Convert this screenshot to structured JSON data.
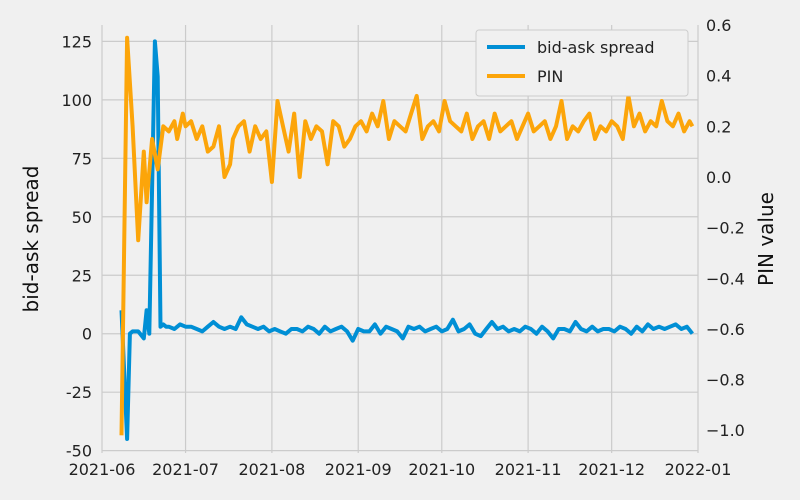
{
  "chart_data": {
    "type": "line",
    "title": "",
    "xlabel": "",
    "ylabel_left": "bid-ask spread",
    "ylabel_right": "PIN value",
    "x_ticks": [
      "2021-06",
      "2021-07",
      "2021-08",
      "2021-09",
      "2021-10",
      "2021-11",
      "2021-12",
      "2022-01"
    ],
    "xlim": [
      "2021-06-01",
      "2022-01-01"
    ],
    "ylim_left": [
      -51,
      132
    ],
    "ylim_right": [
      -1.09,
      0.6
    ],
    "y_ticks_left": [
      -50,
      -25,
      0,
      25,
      50,
      75,
      100,
      125
    ],
    "y_ticks_right": [
      -1.0,
      -0.8,
      -0.6,
      -0.4,
      -0.2,
      0.0,
      0.2,
      0.4,
      0.6
    ],
    "grid": true,
    "legend": {
      "position": "top-right"
    },
    "series": [
      {
        "name": "bid-ask spread",
        "axis": "left",
        "color": "#008fd5",
        "x": [
          "2021-06-08",
          "2021-06-10",
          "2021-06-11",
          "2021-06-12",
          "2021-06-14",
          "2021-06-16",
          "2021-06-17",
          "2021-06-18",
          "2021-06-20",
          "2021-06-21",
          "2021-06-22",
          "2021-06-23",
          "2021-06-24",
          "2021-06-25",
          "2021-06-27",
          "2021-06-29",
          "2021-07-01",
          "2021-07-03",
          "2021-07-05",
          "2021-07-07",
          "2021-07-09",
          "2021-07-11",
          "2021-07-13",
          "2021-07-15",
          "2021-07-17",
          "2021-07-19",
          "2021-07-21",
          "2021-07-23",
          "2021-07-25",
          "2021-07-27",
          "2021-07-29",
          "2021-07-31",
          "2021-08-02",
          "2021-08-04",
          "2021-08-06",
          "2021-08-08",
          "2021-08-10",
          "2021-08-12",
          "2021-08-14",
          "2021-08-16",
          "2021-08-18",
          "2021-08-20",
          "2021-08-22",
          "2021-08-24",
          "2021-08-26",
          "2021-08-28",
          "2021-08-30",
          "2021-09-01",
          "2021-09-03",
          "2021-09-05",
          "2021-09-07",
          "2021-09-09",
          "2021-09-11",
          "2021-09-13",
          "2021-09-15",
          "2021-09-17",
          "2021-09-19",
          "2021-09-21",
          "2021-09-23",
          "2021-09-25",
          "2021-09-27",
          "2021-09-29",
          "2021-10-01",
          "2021-10-03",
          "2021-10-05",
          "2021-10-07",
          "2021-10-09",
          "2021-10-11",
          "2021-10-13",
          "2021-10-15",
          "2021-10-17",
          "2021-10-19",
          "2021-10-21",
          "2021-10-23",
          "2021-10-25",
          "2021-10-27",
          "2021-10-29",
          "2021-10-31",
          "2021-11-02",
          "2021-11-04",
          "2021-11-06",
          "2021-11-08",
          "2021-11-10",
          "2021-11-12",
          "2021-11-14",
          "2021-11-16",
          "2021-11-18",
          "2021-11-20",
          "2021-11-22",
          "2021-11-24",
          "2021-11-26",
          "2021-11-28",
          "2021-11-30",
          "2021-12-02",
          "2021-12-04",
          "2021-12-06",
          "2021-12-08",
          "2021-12-10",
          "2021-12-12",
          "2021-12-14",
          "2021-12-16",
          "2021-12-18",
          "2021-12-20",
          "2021-12-22",
          "2021-12-24",
          "2021-12-26",
          "2021-12-28",
          "2021-12-30"
        ],
        "values": [
          10,
          -45,
          0,
          1,
          1,
          -2,
          10,
          0,
          125,
          110,
          3,
          4,
          3,
          3,
          2,
          4,
          3,
          3,
          2,
          1,
          3,
          5,
          3,
          2,
          3,
          2,
          7,
          4,
          3,
          2,
          3,
          1,
          2,
          1,
          0,
          2,
          2,
          1,
          3,
          2,
          0,
          3,
          1,
          2,
          3,
          1,
          -3,
          2,
          1,
          1,
          4,
          0,
          3,
          2,
          1,
          -2,
          3,
          2,
          3,
          1,
          2,
          3,
          1,
          2,
          6,
          1,
          2,
          4,
          0,
          -1,
          2,
          5,
          2,
          3,
          1,
          2,
          1,
          3,
          2,
          0,
          3,
          1,
          -2,
          2,
          2,
          1,
          5,
          2,
          1,
          3,
          1,
          2,
          2,
          1,
          3,
          2,
          0,
          3,
          1,
          4,
          2,
          3,
          2,
          3,
          4,
          2,
          3,
          0
        ]
      },
      {
        "name": "PIN",
        "axis": "right",
        "color": "#fca50a",
        "x": [
          "2021-06-08",
          "2021-06-10",
          "2021-06-12",
          "2021-06-14",
          "2021-06-16",
          "2021-06-17",
          "2021-06-19",
          "2021-06-21",
          "2021-06-23",
          "2021-06-25",
          "2021-06-27",
          "2021-06-28",
          "2021-06-30",
          "2021-07-01",
          "2021-07-03",
          "2021-07-05",
          "2021-07-07",
          "2021-07-09",
          "2021-07-11",
          "2021-07-13",
          "2021-07-15",
          "2021-07-17",
          "2021-07-18",
          "2021-07-20",
          "2021-07-22",
          "2021-07-24",
          "2021-07-26",
          "2021-07-28",
          "2021-07-30",
          "2021-08-01",
          "2021-08-03",
          "2021-08-05",
          "2021-08-07",
          "2021-08-09",
          "2021-08-11",
          "2021-08-13",
          "2021-08-15",
          "2021-08-17",
          "2021-08-19",
          "2021-08-21",
          "2021-08-23",
          "2021-08-25",
          "2021-08-27",
          "2021-08-29",
          "2021-08-31",
          "2021-09-02",
          "2021-09-04",
          "2021-09-06",
          "2021-09-08",
          "2021-09-10",
          "2021-09-12",
          "2021-09-14",
          "2021-09-16",
          "2021-09-18",
          "2021-09-20",
          "2021-09-22",
          "2021-09-24",
          "2021-09-26",
          "2021-09-28",
          "2021-09-30",
          "2021-10-02",
          "2021-10-04",
          "2021-10-06",
          "2021-10-08",
          "2021-10-10",
          "2021-10-12",
          "2021-10-14",
          "2021-10-16",
          "2021-10-18",
          "2021-10-20",
          "2021-10-22",
          "2021-10-24",
          "2021-10-26",
          "2021-10-28",
          "2021-10-30",
          "2021-11-01",
          "2021-11-03",
          "2021-11-05",
          "2021-11-07",
          "2021-11-09",
          "2021-11-11",
          "2021-11-13",
          "2021-11-15",
          "2021-11-17",
          "2021-11-19",
          "2021-11-21",
          "2021-11-23",
          "2021-11-25",
          "2021-11-27",
          "2021-11-29",
          "2021-12-01",
          "2021-12-03",
          "2021-12-05",
          "2021-12-07",
          "2021-12-09",
          "2021-12-11",
          "2021-12-13",
          "2021-12-15",
          "2021-12-17",
          "2021-12-19",
          "2021-12-21",
          "2021-12-23",
          "2021-12-25",
          "2021-12-27",
          "2021-12-29",
          "2021-12-30"
        ],
        "values": [
          -1.02,
          0.55,
          0.2,
          -0.25,
          0.1,
          -0.1,
          0.15,
          0.03,
          0.2,
          0.18,
          0.22,
          0.15,
          0.25,
          0.2,
          0.22,
          0.15,
          0.2,
          0.1,
          0.12,
          0.2,
          0.0,
          0.05,
          0.15,
          0.2,
          0.22,
          0.1,
          0.2,
          0.15,
          0.18,
          -0.02,
          0.3,
          0.2,
          0.1,
          0.25,
          0.0,
          0.22,
          0.15,
          0.2,
          0.18,
          0.05,
          0.22,
          0.2,
          0.12,
          0.15,
          0.2,
          0.22,
          0.18,
          0.25,
          0.2,
          0.3,
          0.15,
          0.22,
          0.2,
          0.18,
          0.25,
          0.32,
          0.15,
          0.2,
          0.22,
          0.18,
          0.3,
          0.22,
          0.2,
          0.18,
          0.25,
          0.15,
          0.2,
          0.22,
          0.15,
          0.25,
          0.18,
          0.2,
          0.22,
          0.15,
          0.2,
          0.25,
          0.18,
          0.2,
          0.22,
          0.15,
          0.2,
          0.3,
          0.15,
          0.2,
          0.18,
          0.22,
          0.25,
          0.15,
          0.2,
          0.18,
          0.22,
          0.2,
          0.15,
          0.32,
          0.2,
          0.25,
          0.18,
          0.22,
          0.2,
          0.3,
          0.22,
          0.2,
          0.25,
          0.18,
          0.22,
          0.2
        ]
      }
    ]
  }
}
